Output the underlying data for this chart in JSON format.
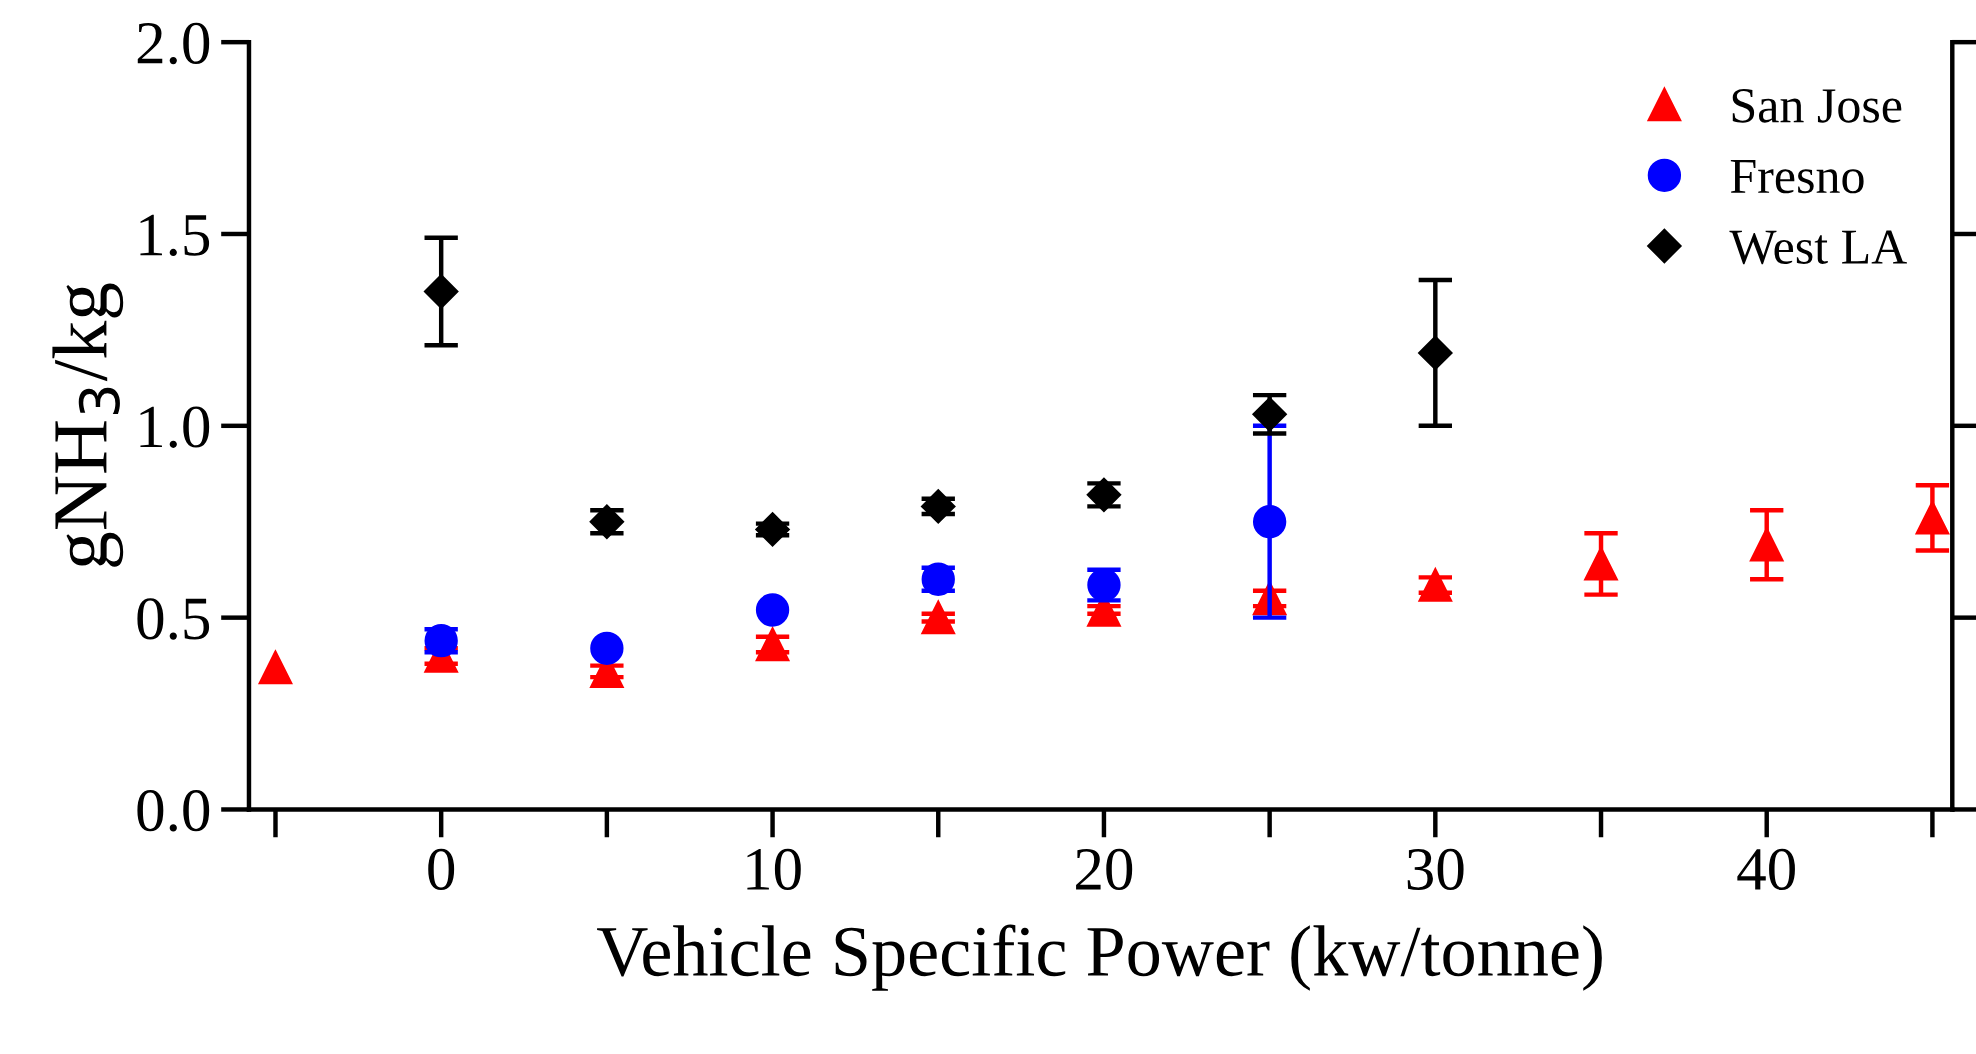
{
  "chart_data": {
    "type": "scatter",
    "xlabel": "Vehicle Specific Power (kw/tonne)",
    "ylabel": "gNH$_{3}$/kg",
    "xlim": [
      -5.8,
      45.6
    ],
    "ylim": [
      0,
      2.0
    ],
    "xticks": [
      {
        "value": -5,
        "label": null
      },
      0,
      {
        "value": 5,
        "label": null
      },
      10,
      {
        "value": 15,
        "label": null
      },
      20,
      {
        "value": 25,
        "label": null
      },
      30,
      {
        "value": 35,
        "label": null
      },
      40,
      {
        "value": 45,
        "label": null
      }
    ],
    "yticks": [
      {
        "value": 0,
        "label": "0.0"
      },
      0.5,
      {
        "value": 1,
        "label": "1.0"
      },
      1.5,
      {
        "value": 2,
        "label": "2.0"
      }
    ],
    "grid": false,
    "legend": "top right",
    "series": [
      {
        "name": "San Jose",
        "color": "#ff0000",
        "marker": "triangle",
        "x": [
          -5,
          0,
          5,
          10,
          15,
          20,
          25,
          30,
          35,
          40,
          45
        ],
        "values": [
          0.37,
          0.4,
          0.36,
          0.43,
          0.5,
          0.52,
          0.55,
          0.585,
          0.64,
          0.69,
          0.76
        ],
        "errors": [
          null,
          0.02,
          0.015,
          0.02,
          0.01,
          0.01,
          0.02,
          0.02,
          0.08,
          0.09,
          0.085
        ]
      },
      {
        "name": "Fresno",
        "color": "#0000ff",
        "marker": "circle",
        "x": [
          0,
          5,
          10,
          15,
          20,
          25
        ],
        "values": [
          0.44,
          0.42,
          0.52,
          0.6,
          0.585,
          0.75
        ],
        "errors": [
          0.03,
          null,
          null,
          0.03,
          0.04,
          0.25
        ]
      },
      {
        "name": "West LA",
        "color": "#000000",
        "marker": "diamond",
        "x": [
          0,
          5,
          10,
          15,
          20,
          25,
          30
        ],
        "values": [
          1.35,
          0.75,
          0.73,
          0.79,
          0.82,
          1.03,
          1.19
        ],
        "errors": [
          0.14,
          0.03,
          0.015,
          0.02,
          0.03,
          0.05,
          0.19
        ]
      }
    ]
  }
}
